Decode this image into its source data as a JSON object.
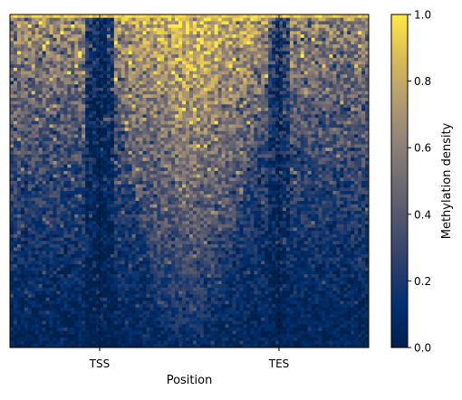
{
  "chart_data": {
    "type": "heatmap",
    "title": "",
    "xlabel": "Position",
    "ylabel": "",
    "x_ticks": [
      {
        "position": 25,
        "label": "TSS"
      },
      {
        "position": 75,
        "label": "TES"
      }
    ],
    "y_ticks": [],
    "n_cols": 100,
    "n_rows": 100,
    "colormap": "cividis",
    "colorbar": {
      "label": "Methylation density",
      "range": [
        0.0,
        1.0
      ],
      "ticks": [
        "0.0",
        "0.2",
        "0.4",
        "0.6",
        "0.8",
        "1.0"
      ]
    },
    "reference_lines": [
      {
        "position": 25,
        "style": "dashed",
        "color": "#000000"
      },
      {
        "position": 75,
        "style": "dashed",
        "color": "#000000"
      }
    ],
    "pattern": "Rows sorted by methylation: top rows high (~0.8-1.0), bottom rows low (~0.0-0.2). Gene body between TSS and TES has highest density, forming an inverted triangle; dark low-density bands at TSS and TES; flanks intermediate toward top."
  }
}
